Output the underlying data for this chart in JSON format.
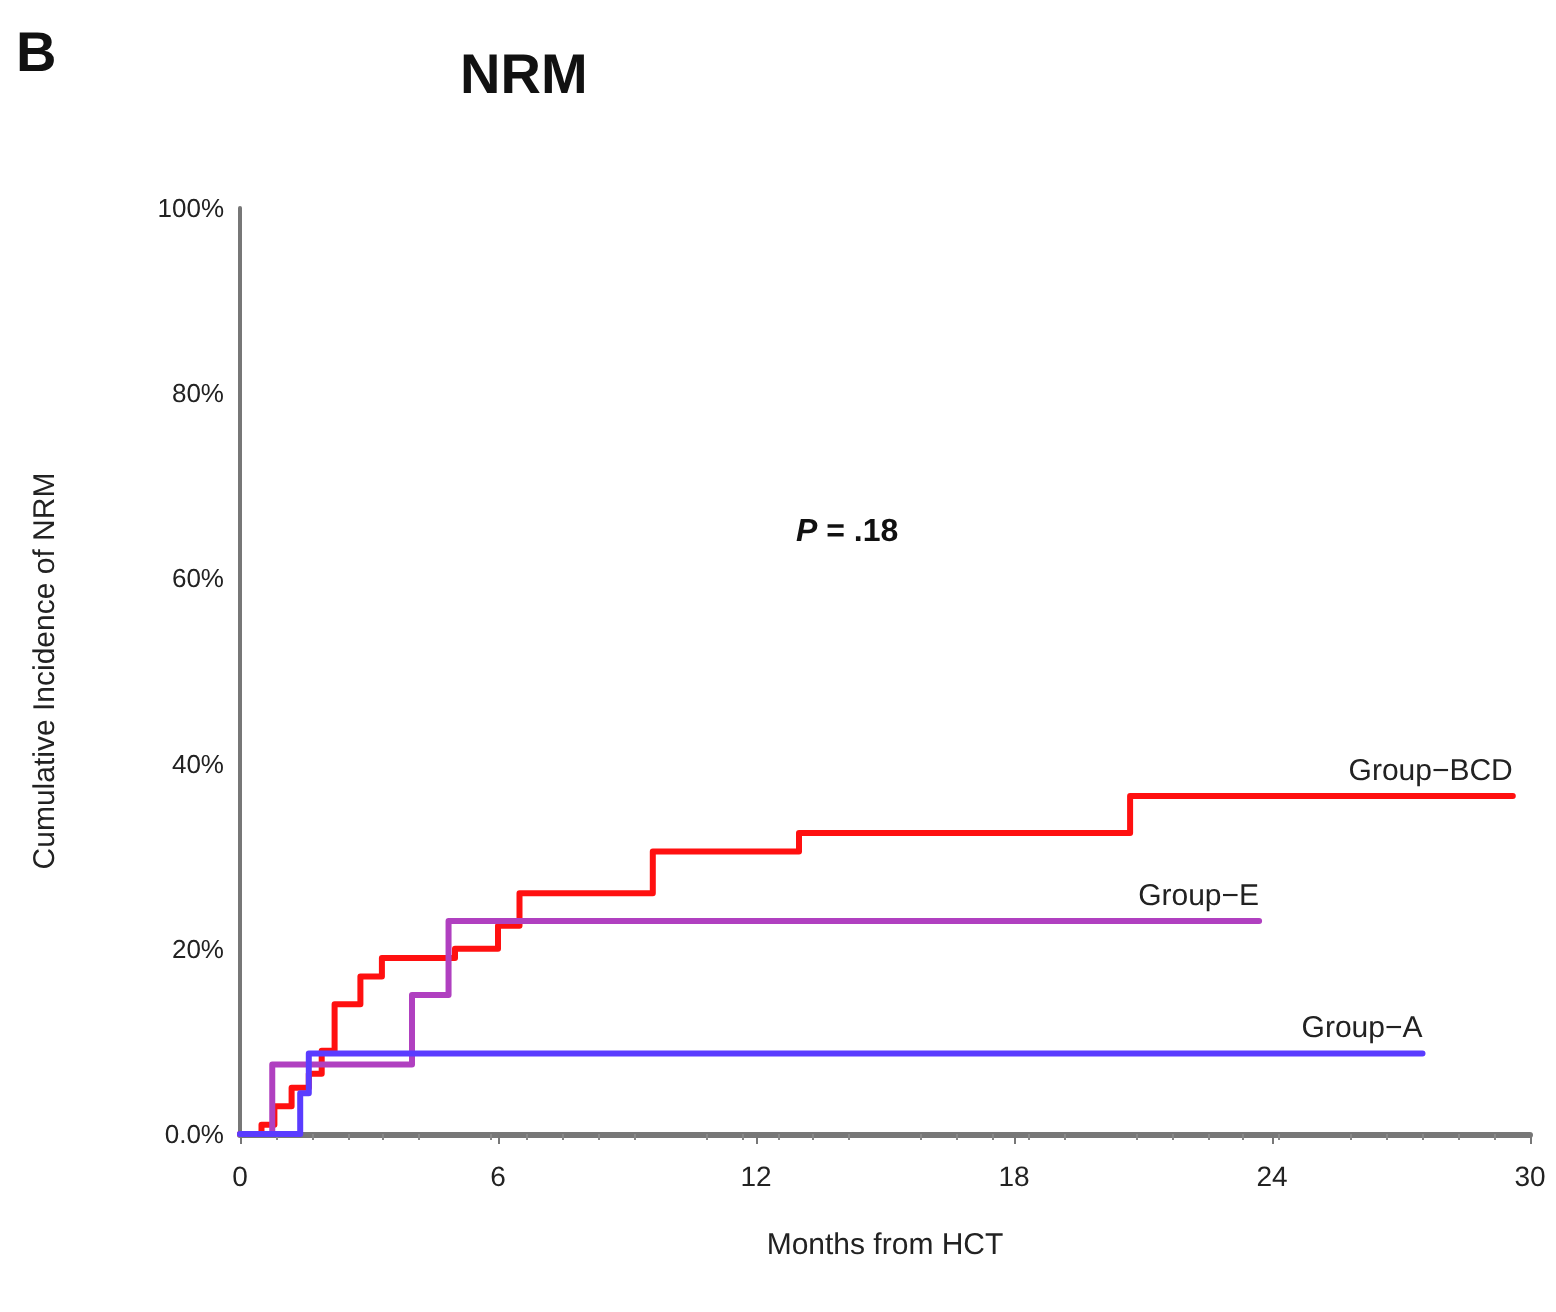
{
  "chart_data": {
    "type": "step",
    "title": "NRM",
    "xlabel": "Months from HCT",
    "ylabel": "Cumulative Incidence of NRM",
    "annotations": [
      "B",
      "P = .18"
    ],
    "xlim": [
      0,
      30
    ],
    "xticks": [
      0,
      6,
      12,
      18,
      24,
      30
    ],
    "ylim": [
      0,
      100
    ],
    "yticks": [
      {
        "value": 0,
        "label": "0.0%"
      },
      {
        "value": 20,
        "label": "20%"
      },
      {
        "value": 40,
        "label": "40%"
      },
      {
        "value": 60,
        "label": "60%"
      },
      {
        "value": 80,
        "label": "80%"
      },
      {
        "value": 100,
        "label": "100%"
      }
    ],
    "grid": false,
    "legend": false,
    "marker": "none",
    "line_style": "solid",
    "series": [
      {
        "name": "Group−BCD",
        "color": "#ff1010",
        "x": [
          0,
          0.5,
          0.8,
          1.2,
          1.6,
          1.9,
          2.2,
          2.8,
          3.3,
          5,
          6,
          6.5,
          9.6,
          13,
          20.7,
          29.6
        ],
        "values": [
          0,
          1,
          3,
          5,
          6.5,
          9,
          14,
          17,
          19,
          20,
          22.5,
          26,
          30.5,
          32.5,
          36.5,
          36.5
        ]
      },
      {
        "name": "Group−E",
        "color": "#b040c0",
        "x": [
          0,
          0.75,
          4,
          4.85,
          23.7
        ],
        "values": [
          0,
          7.5,
          15,
          23,
          23
        ]
      },
      {
        "name": "Group−A",
        "color": "#5a3cff",
        "x": [
          0,
          1.4,
          1.6,
          27.5
        ],
        "values": [
          0,
          4.4,
          8.7,
          8.7
        ]
      }
    ]
  }
}
